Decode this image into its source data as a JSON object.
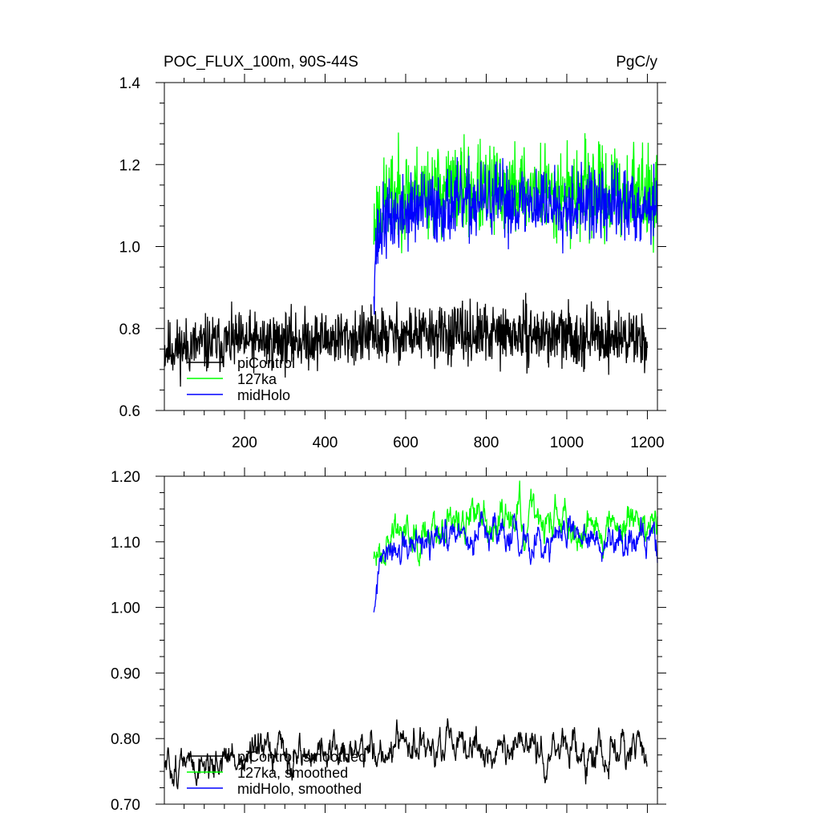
{
  "chart_data": [
    {
      "type": "line",
      "title": "POC_FLUX_100m, 90S-44S",
      "units": "PgC/y",
      "xlabel": "",
      "ylabel": "",
      "xlim": [
        1,
        1225
      ],
      "ylim": [
        0.6,
        1.4
      ],
      "x_ticks": [
        200,
        400,
        600,
        800,
        1000,
        1200
      ],
      "x_tick_labels": [
        "200",
        "400",
        "600",
        "800",
        "1000",
        "1200"
      ],
      "y_ticks": [
        0.6,
        0.8,
        1.0,
        1.2,
        1.4
      ],
      "y_tick_labels": [
        "0.6",
        "0.8",
        "1.0",
        "1.2",
        "1.4"
      ],
      "grid": false,
      "legend_position": "bottom-left",
      "series": [
        {
          "name": "piControl",
          "color": "#000000",
          "x_range": [
            1,
            1200
          ],
          "level": [
            [
              1,
              0.75
            ],
            [
              150,
              0.765
            ],
            [
              400,
              0.775
            ],
            [
              600,
              0.785
            ],
            [
              900,
              0.785
            ],
            [
              1200,
              0.775
            ]
          ],
          "noise": 0.035,
          "seed": 11
        },
        {
          "name": "127ka",
          "color": "#00ff00",
          "x_range": [
            521,
            1225
          ],
          "level": [
            [
              521,
              1.04
            ],
            [
              530,
              1.08
            ],
            [
              560,
              1.12
            ],
            [
              650,
              1.14
            ],
            [
              1225,
              1.13
            ]
          ],
          "noise": 0.055,
          "seed": 23
        },
        {
          "name": "midHolo",
          "color": "#0000ff",
          "x_range": [
            521,
            1225
          ],
          "level": [
            [
              521,
              0.92
            ],
            [
              526,
              1.0
            ],
            [
              545,
              1.06
            ],
            [
              620,
              1.09
            ],
            [
              800,
              1.11
            ],
            [
              1225,
              1.1
            ]
          ],
          "noise": 0.045,
          "seed": 37
        }
      ]
    },
    {
      "type": "line",
      "title": "",
      "xlabel": "",
      "ylabel": "",
      "xlim": [
        1,
        1225
      ],
      "ylim": [
        0.7,
        1.2
      ],
      "x_ticks": [
        200,
        400,
        600,
        800,
        1000,
        1200
      ],
      "x_tick_labels": [],
      "y_ticks": [
        0.7,
        0.8,
        0.9,
        1.0,
        1.1,
        1.2
      ],
      "y_tick_labels": [
        "0.70",
        "0.80",
        "0.90",
        "1.00",
        "1.10",
        "1.20"
      ],
      "grid": false,
      "legend_position": "bottom-left",
      "series": [
        {
          "name": "piControl, smoothed",
          "color": "#000000",
          "x_range": [
            1,
            1200
          ],
          "level": [
            [
              1,
              0.755
            ],
            [
              150,
              0.768
            ],
            [
              400,
              0.778
            ],
            [
              600,
              0.785
            ],
            [
              900,
              0.782
            ],
            [
              1200,
              0.776
            ]
          ],
          "noise": 0.016,
          "seed": 51
        },
        {
          "name": "127ka, smoothed",
          "color": "#00ff00",
          "x_range": [
            521,
            1225
          ],
          "level": [
            [
              521,
              1.06
            ],
            [
              540,
              1.1
            ],
            [
              600,
              1.125
            ],
            [
              800,
              1.135
            ],
            [
              1225,
              1.128
            ]
          ],
          "noise": 0.018,
          "seed": 63
        },
        {
          "name": "midHolo, smoothed",
          "color": "#0000ff",
          "x_range": [
            521,
            1225
          ],
          "level": [
            [
              521,
              1.0
            ],
            [
              535,
              1.06
            ],
            [
              580,
              1.085
            ],
            [
              800,
              1.11
            ],
            [
              1225,
              1.1
            ]
          ],
          "noise": 0.016,
          "seed": 77
        }
      ]
    }
  ]
}
